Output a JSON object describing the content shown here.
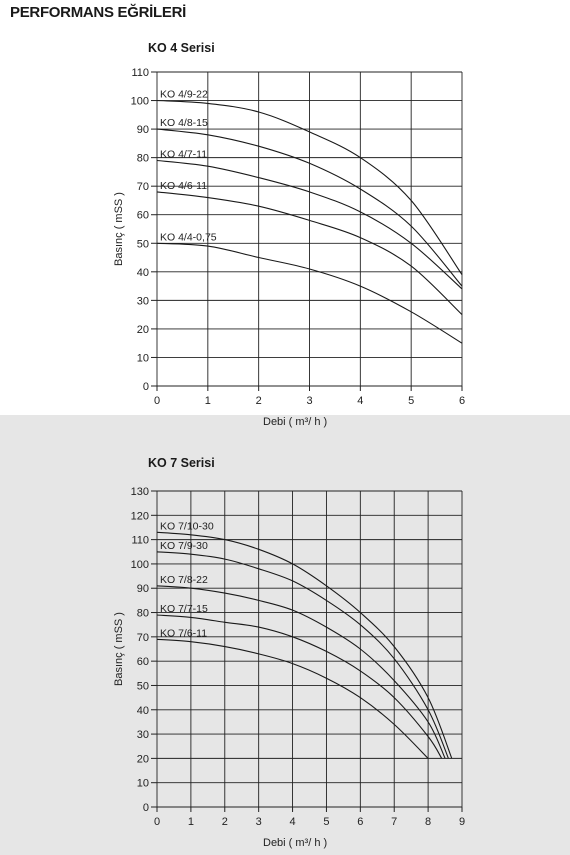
{
  "page_title": "PERFORMANS EĞRİLERİ",
  "chart_data": [
    {
      "type": "line",
      "title": "KO 4 Serisi",
      "xlabel": "Debi",
      "xunit": "( m³/ h )",
      "ylabel": "Basınç ( mSS )",
      "xlim": [
        0,
        6
      ],
      "ylim": [
        0,
        110
      ],
      "x_ticks": [
        "0",
        "1",
        "2",
        "3",
        "4",
        "5",
        "6"
      ],
      "y_ticks": [
        "0",
        "10",
        "20",
        "30",
        "40",
        "50",
        "60",
        "70",
        "80",
        "90",
        "100",
        "110"
      ],
      "grid": true,
      "series": [
        {
          "name": "KO 4/9-22",
          "x": [
            0,
            1,
            2,
            3,
            4,
            5,
            6
          ],
          "y": [
            100,
            99,
            96,
            89,
            80,
            65,
            39
          ]
        },
        {
          "name": "KO 4/8-15",
          "x": [
            0,
            1,
            2,
            3,
            4,
            5,
            6
          ],
          "y": [
            90,
            88,
            84,
            78,
            69,
            56,
            35
          ]
        },
        {
          "name": "KO 4/7-11",
          "x": [
            0,
            1,
            2,
            3,
            4,
            5,
            6
          ],
          "y": [
            79,
            77,
            73,
            68,
            61,
            50,
            34
          ]
        },
        {
          "name": "KO 4/6-11",
          "x": [
            0,
            1,
            2,
            3,
            4,
            5,
            6
          ],
          "y": [
            68,
            66,
            63,
            58,
            52,
            42,
            25
          ]
        },
        {
          "name": "KO 4/4-0,75",
          "x": [
            0,
            1,
            2,
            3,
            4,
            5,
            6
          ],
          "y": [
            50,
            49,
            45,
            41,
            35,
            26,
            15
          ]
        }
      ]
    },
    {
      "type": "line",
      "title": "KO 7 Serisi",
      "xlabel": "Debi",
      "xunit": "( m³/ h )",
      "ylabel": "Basınç ( mSS )",
      "xlim": [
        0,
        9
      ],
      "ylim": [
        0,
        130
      ],
      "x_ticks": [
        "0",
        "1",
        "2",
        "3",
        "4",
        "5",
        "6",
        "7",
        "8",
        "9"
      ],
      "y_ticks": [
        "0",
        "10",
        "20",
        "30",
        "40",
        "50",
        "60",
        "70",
        "80",
        "90",
        "100",
        "110",
        "120",
        "130"
      ],
      "grid": true,
      "series": [
        {
          "name": "KO 7/10-30",
          "x": [
            0,
            1,
            2,
            3,
            4,
            5,
            6,
            7,
            8,
            8.7
          ],
          "y": [
            113,
            112,
            110,
            106,
            100,
            91,
            80,
            66,
            45,
            20
          ]
        },
        {
          "name": "KO 7/9-30",
          "x": [
            0,
            1,
            2,
            3,
            4,
            5,
            6,
            7,
            8,
            8.6
          ],
          "y": [
            105,
            104,
            102,
            98,
            93,
            85,
            75,
            61,
            40,
            20
          ]
        },
        {
          "name": "KO 7/8-22",
          "x": [
            0,
            1,
            2,
            3,
            4,
            5,
            6,
            7,
            8,
            8.5
          ],
          "y": [
            91,
            90,
            88,
            85,
            81,
            74,
            65,
            52,
            35,
            20
          ]
        },
        {
          "name": "KO 7/7-15",
          "x": [
            0,
            1,
            2,
            3,
            4,
            5,
            6,
            7,
            8,
            8.4
          ],
          "y": [
            79,
            78,
            76,
            74,
            70,
            64,
            56,
            45,
            29,
            20
          ]
        },
        {
          "name": "KO 7/6-11",
          "x": [
            0,
            1,
            2,
            3,
            4,
            5,
            6,
            7,
            8
          ],
          "y": [
            69,
            68,
            66,
            63,
            59,
            53,
            45,
            34,
            20
          ]
        }
      ]
    }
  ]
}
